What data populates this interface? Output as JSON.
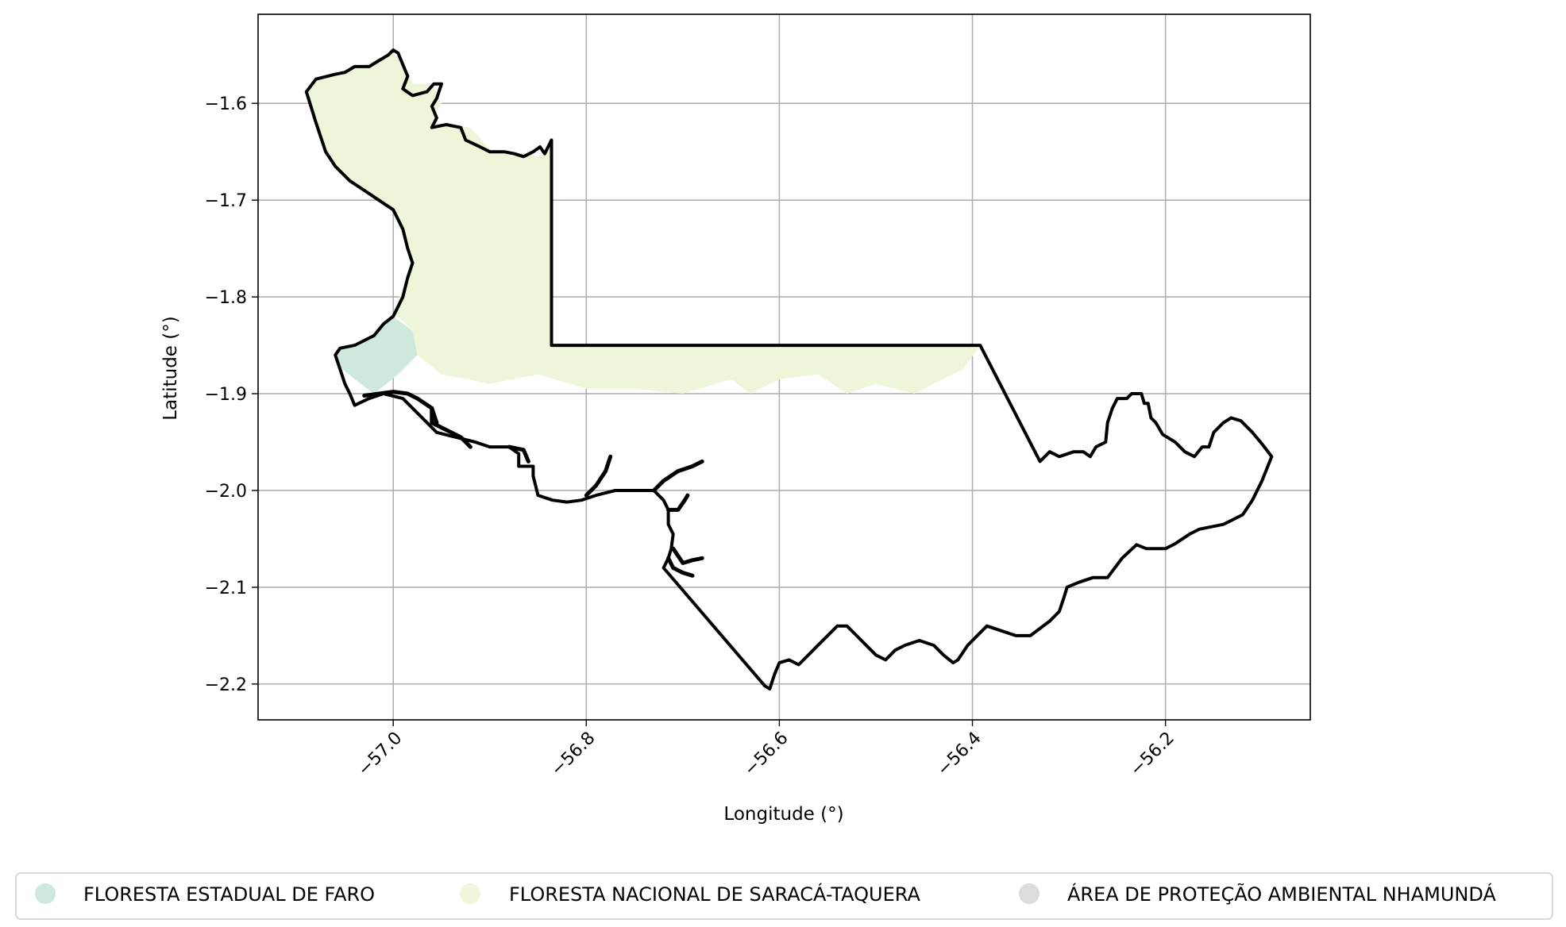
{
  "chart_data": {
    "type": "map",
    "xlabel": "Longitude (°)",
    "ylabel": "Latitude (°)",
    "xlim": [
      -57.14,
      -56.05
    ],
    "ylim": [
      -2.237,
      -1.508
    ],
    "xticks": [
      -57.0,
      -56.8,
      -56.6,
      -56.4,
      -56.2
    ],
    "xtick_labels": [
      "−57.0",
      "−56.8",
      "−56.6",
      "−56.4",
      "−56.2"
    ],
    "yticks": [
      -1.6,
      -1.7,
      -1.8,
      -1.9,
      -2.0,
      -2.1,
      -2.2
    ],
    "ytick_labels": [
      "−1.6",
      "−1.7",
      "−1.8",
      "−1.9",
      "−2.0",
      "−2.1",
      "−2.2"
    ],
    "grid": true,
    "legend_placement": "bottom",
    "legend": [
      {
        "label": "FLORESTA ESTADUAL DE FARO",
        "color": "#cfe8dc"
      },
      {
        "label": "FLORESTA NACIONAL DE SARACÁ-TAQUERA",
        "color": "#eef6da"
      },
      {
        "label": "ÁREA DE PROTEÇÃO AMBIENTAL NHAMUNDÁ",
        "color": "#dcdcdc"
      }
    ],
    "areas": [
      {
        "name": "FLORESTA ESTADUAL DE FARO",
        "color": "#cfe8dc",
        "points": [
          [
            -57.058,
            -1.853
          ],
          [
            -57.04,
            -1.852
          ],
          [
            -57.02,
            -1.842
          ],
          [
            -57.0,
            -1.82
          ],
          [
            -56.98,
            -1.835
          ],
          [
            -56.975,
            -1.86
          ],
          [
            -56.995,
            -1.88
          ],
          [
            -57.02,
            -1.9
          ],
          [
            -57.04,
            -1.885
          ],
          [
            -57.058,
            -1.87
          ]
        ]
      },
      {
        "name": "FLORESTA NACIONAL DE SARACÁ-TAQUERA",
        "color": "#eef6da",
        "points": [
          [
            -57.09,
            -1.588
          ],
          [
            -57.08,
            -1.575
          ],
          [
            -57.05,
            -1.568
          ],
          [
            -57.03,
            -1.56
          ],
          [
            -57.0,
            -1.548
          ],
          [
            -56.99,
            -1.56
          ],
          [
            -56.98,
            -1.58
          ],
          [
            -56.96,
            -1.58
          ],
          [
            -56.95,
            -1.6
          ],
          [
            -56.96,
            -1.62
          ],
          [
            -56.92,
            -1.625
          ],
          [
            -56.9,
            -1.648
          ],
          [
            -56.875,
            -1.65
          ],
          [
            -56.85,
            -1.655
          ],
          [
            -56.836,
            -1.638
          ],
          [
            -56.836,
            -1.85
          ],
          [
            -56.392,
            -1.85
          ],
          [
            -56.41,
            -1.875
          ],
          [
            -56.44,
            -1.89
          ],
          [
            -56.46,
            -1.9
          ],
          [
            -56.5,
            -1.89
          ],
          [
            -56.53,
            -1.9
          ],
          [
            -56.56,
            -1.88
          ],
          [
            -56.6,
            -1.885
          ],
          [
            -56.63,
            -1.9
          ],
          [
            -56.65,
            -1.885
          ],
          [
            -56.7,
            -1.9
          ],
          [
            -56.75,
            -1.895
          ],
          [
            -56.8,
            -1.895
          ],
          [
            -56.85,
            -1.88
          ],
          [
            -56.9,
            -1.89
          ],
          [
            -56.95,
            -1.88
          ],
          [
            -56.975,
            -1.86
          ],
          [
            -56.98,
            -1.835
          ],
          [
            -56.995,
            -1.82
          ],
          [
            -57.0,
            -1.82
          ],
          [
            -56.99,
            -1.79
          ],
          [
            -56.98,
            -1.76
          ],
          [
            -56.99,
            -1.73
          ],
          [
            -57.0,
            -1.71
          ],
          [
            -57.03,
            -1.69
          ],
          [
            -57.06,
            -1.67
          ],
          [
            -57.08,
            -1.62
          ]
        ]
      }
    ],
    "boundary": {
      "name": "ÁREA DE PROTEÇÃO AMBIENTAL NHAMUNDÁ",
      "points": [
        [
          -57.09,
          -1.588
        ],
        [
          -57.08,
          -1.575
        ],
        [
          -57.06,
          -1.57
        ],
        [
          -57.05,
          -1.568
        ],
        [
          -57.04,
          -1.562
        ],
        [
          -57.025,
          -1.562
        ],
        [
          -57.015,
          -1.556
        ],
        [
          -57.005,
          -1.55
        ],
        [
          -57.0,
          -1.545
        ],
        [
          -56.995,
          -1.548
        ],
        [
          -56.99,
          -1.56
        ],
        [
          -56.985,
          -1.572
        ],
        [
          -56.99,
          -1.585
        ],
        [
          -56.98,
          -1.592
        ],
        [
          -56.965,
          -1.588
        ],
        [
          -56.958,
          -1.58
        ],
        [
          -56.95,
          -1.58
        ],
        [
          -56.955,
          -1.595
        ],
        [
          -56.96,
          -1.603
        ],
        [
          -56.955,
          -1.615
        ],
        [
          -56.96,
          -1.625
        ],
        [
          -56.945,
          -1.622
        ],
        [
          -56.93,
          -1.625
        ],
        [
          -56.925,
          -1.638
        ],
        [
          -56.91,
          -1.645
        ],
        [
          -56.9,
          -1.65
        ],
        [
          -56.885,
          -1.65
        ],
        [
          -56.875,
          -1.652
        ],
        [
          -56.865,
          -1.655
        ],
        [
          -56.855,
          -1.65
        ],
        [
          -56.848,
          -1.645
        ],
        [
          -56.843,
          -1.652
        ],
        [
          -56.836,
          -1.638
        ],
        [
          -56.836,
          -1.85
        ],
        [
          -56.392,
          -1.85
        ],
        [
          -56.33,
          -1.97
        ],
        [
          -56.32,
          -1.96
        ],
        [
          -56.31,
          -1.965
        ],
        [
          -56.295,
          -1.96
        ],
        [
          -56.285,
          -1.96
        ],
        [
          -56.278,
          -1.965
        ],
        [
          -56.272,
          -1.955
        ],
        [
          -56.262,
          -1.95
        ],
        [
          -56.26,
          -1.93
        ],
        [
          -56.255,
          -1.915
        ],
        [
          -56.25,
          -1.905
        ],
        [
          -56.24,
          -1.905
        ],
        [
          -56.235,
          -1.9
        ],
        [
          -56.225,
          -1.9
        ],
        [
          -56.222,
          -1.91
        ],
        [
          -56.218,
          -1.91
        ],
        [
          -56.215,
          -1.925
        ],
        [
          -56.21,
          -1.93
        ],
        [
          -56.203,
          -1.942
        ],
        [
          -56.19,
          -1.95
        ],
        [
          -56.18,
          -1.96
        ],
        [
          -56.17,
          -1.965
        ],
        [
          -56.162,
          -1.955
        ],
        [
          -56.155,
          -1.955
        ],
        [
          -56.15,
          -1.94
        ],
        [
          -56.14,
          -1.93
        ],
        [
          -56.132,
          -1.925
        ],
        [
          -56.122,
          -1.928
        ],
        [
          -56.11,
          -1.94
        ],
        [
          -56.1,
          -1.952
        ],
        [
          -56.09,
          -1.965
        ],
        [
          -56.1,
          -1.99
        ],
        [
          -56.11,
          -2.01
        ],
        [
          -56.12,
          -2.025
        ],
        [
          -56.13,
          -2.03
        ],
        [
          -56.14,
          -2.035
        ],
        [
          -56.155,
          -2.038
        ],
        [
          -56.165,
          -2.04
        ],
        [
          -56.175,
          -2.045
        ],
        [
          -56.19,
          -2.055
        ],
        [
          -56.2,
          -2.06
        ],
        [
          -56.22,
          -2.06
        ],
        [
          -56.23,
          -2.056
        ],
        [
          -56.245,
          -2.07
        ],
        [
          -56.26,
          -2.09
        ],
        [
          -56.275,
          -2.09
        ],
        [
          -56.29,
          -2.095
        ],
        [
          -56.302,
          -2.1
        ],
        [
          -56.305,
          -2.11
        ],
        [
          -56.31,
          -2.125
        ],
        [
          -56.32,
          -2.135
        ],
        [
          -56.34,
          -2.15
        ],
        [
          -56.355,
          -2.15
        ],
        [
          -56.37,
          -2.145
        ],
        [
          -56.385,
          -2.14
        ],
        [
          -56.395,
          -2.15
        ],
        [
          -56.405,
          -2.16
        ],
        [
          -56.415,
          -2.175
        ],
        [
          -56.42,
          -2.178
        ],
        [
          -56.43,
          -2.17
        ],
        [
          -56.44,
          -2.16
        ],
        [
          -56.455,
          -2.155
        ],
        [
          -56.47,
          -2.16
        ],
        [
          -56.48,
          -2.165
        ],
        [
          -56.49,
          -2.175
        ],
        [
          -56.5,
          -2.17
        ],
        [
          -56.51,
          -2.16
        ],
        [
          -56.52,
          -2.15
        ],
        [
          -56.53,
          -2.14
        ],
        [
          -56.54,
          -2.14
        ],
        [
          -56.55,
          -2.15
        ],
        [
          -56.56,
          -2.16
        ],
        [
          -56.57,
          -2.17
        ],
        [
          -56.58,
          -2.18
        ],
        [
          -56.59,
          -2.175
        ],
        [
          -56.6,
          -2.178
        ],
        [
          -56.605,
          -2.19
        ],
        [
          -56.61,
          -2.205
        ],
        [
          -56.615,
          -2.202
        ],
        [
          -56.72,
          -2.08
        ],
        [
          -56.715,
          -2.07
        ],
        [
          -56.712,
          -2.06
        ],
        [
          -56.71,
          -2.045
        ],
        [
          -56.715,
          -2.035
        ],
        [
          -56.715,
          -2.02
        ],
        [
          -56.72,
          -2.01
        ],
        [
          -56.73,
          -2.0
        ],
        [
          -56.75,
          -2.0
        ],
        [
          -56.77,
          -2.0
        ],
        [
          -56.79,
          -2.005
        ],
        [
          -56.805,
          -2.01
        ],
        [
          -56.82,
          -2.012
        ],
        [
          -56.835,
          -2.01
        ],
        [
          -56.85,
          -2.005
        ],
        [
          -56.855,
          -1.985
        ],
        [
          -56.855,
          -1.975
        ],
        [
          -56.87,
          -1.975
        ],
        [
          -56.87,
          -1.962
        ],
        [
          -56.88,
          -1.955
        ],
        [
          -56.9,
          -1.955
        ],
        [
          -56.915,
          -1.95
        ],
        [
          -56.935,
          -1.945
        ],
        [
          -56.955,
          -1.94
        ],
        [
          -56.97,
          -1.925
        ],
        [
          -56.98,
          -1.915
        ],
        [
          -56.99,
          -1.905
        ],
        [
          -57.01,
          -1.9
        ],
        [
          -57.025,
          -1.905
        ],
        [
          -57.04,
          -1.912
        ],
        [
          -57.045,
          -1.9
        ],
        [
          -57.05,
          -1.89
        ],
        [
          -57.055,
          -1.875
        ],
        [
          -57.06,
          -1.86
        ],
        [
          -57.055,
          -1.853
        ],
        [
          -57.04,
          -1.85
        ],
        [
          -57.02,
          -1.84
        ],
        [
          -57.01,
          -1.828
        ],
        [
          -57.0,
          -1.82
        ],
        [
          -56.995,
          -1.81
        ],
        [
          -56.99,
          -1.8
        ],
        [
          -56.985,
          -1.78
        ],
        [
          -56.98,
          -1.765
        ],
        [
          -56.985,
          -1.75
        ],
        [
          -56.99,
          -1.73
        ],
        [
          -56.995,
          -1.72
        ],
        [
          -57.0,
          -1.71
        ],
        [
          -57.015,
          -1.7
        ],
        [
          -57.03,
          -1.69
        ],
        [
          -57.045,
          -1.68
        ],
        [
          -57.06,
          -1.665
        ],
        [
          -57.07,
          -1.65
        ],
        [
          -57.08,
          -1.62
        ]
      ]
    },
    "creeks": [
      {
        "points": [
          [
            -57.03,
            -1.902
          ],
          [
            -57.0,
            -1.898
          ],
          [
            -56.985,
            -1.9
          ],
          [
            -56.975,
            -1.905
          ],
          [
            -56.96,
            -1.915
          ],
          [
            -56.955,
            -1.93
          ]
        ]
      },
      {
        "points": [
          [
            -56.96,
            -1.915
          ],
          [
            -56.96,
            -1.93
          ],
          [
            -56.93,
            -1.945
          ],
          [
            -56.92,
            -1.955
          ]
        ]
      },
      {
        "points": [
          [
            -56.88,
            -1.955
          ],
          [
            -56.865,
            -1.958
          ],
          [
            -56.86,
            -1.97
          ]
        ]
      },
      {
        "points": [
          [
            -56.8,
            -2.005
          ],
          [
            -56.79,
            -1.995
          ],
          [
            -56.78,
            -1.98
          ],
          [
            -56.775,
            -1.965
          ]
        ]
      },
      {
        "points": [
          [
            -56.73,
            -2.0
          ],
          [
            -56.72,
            -1.99
          ],
          [
            -56.705,
            -1.98
          ],
          [
            -56.69,
            -1.975
          ],
          [
            -56.68,
            -1.97
          ]
        ]
      },
      {
        "points": [
          [
            -56.715,
            -2.02
          ],
          [
            -56.705,
            -2.02
          ],
          [
            -56.698,
            -2.01
          ],
          [
            -56.695,
            -2.005
          ]
        ]
      },
      {
        "points": [
          [
            -56.71,
            -2.06
          ],
          [
            -56.7,
            -2.075
          ],
          [
            -56.69,
            -2.072
          ],
          [
            -56.68,
            -2.07
          ]
        ]
      },
      {
        "points": [
          [
            -56.715,
            -2.07
          ],
          [
            -56.71,
            -2.08
          ],
          [
            -56.7,
            -2.085
          ],
          [
            -56.69,
            -2.088
          ]
        ]
      }
    ]
  }
}
